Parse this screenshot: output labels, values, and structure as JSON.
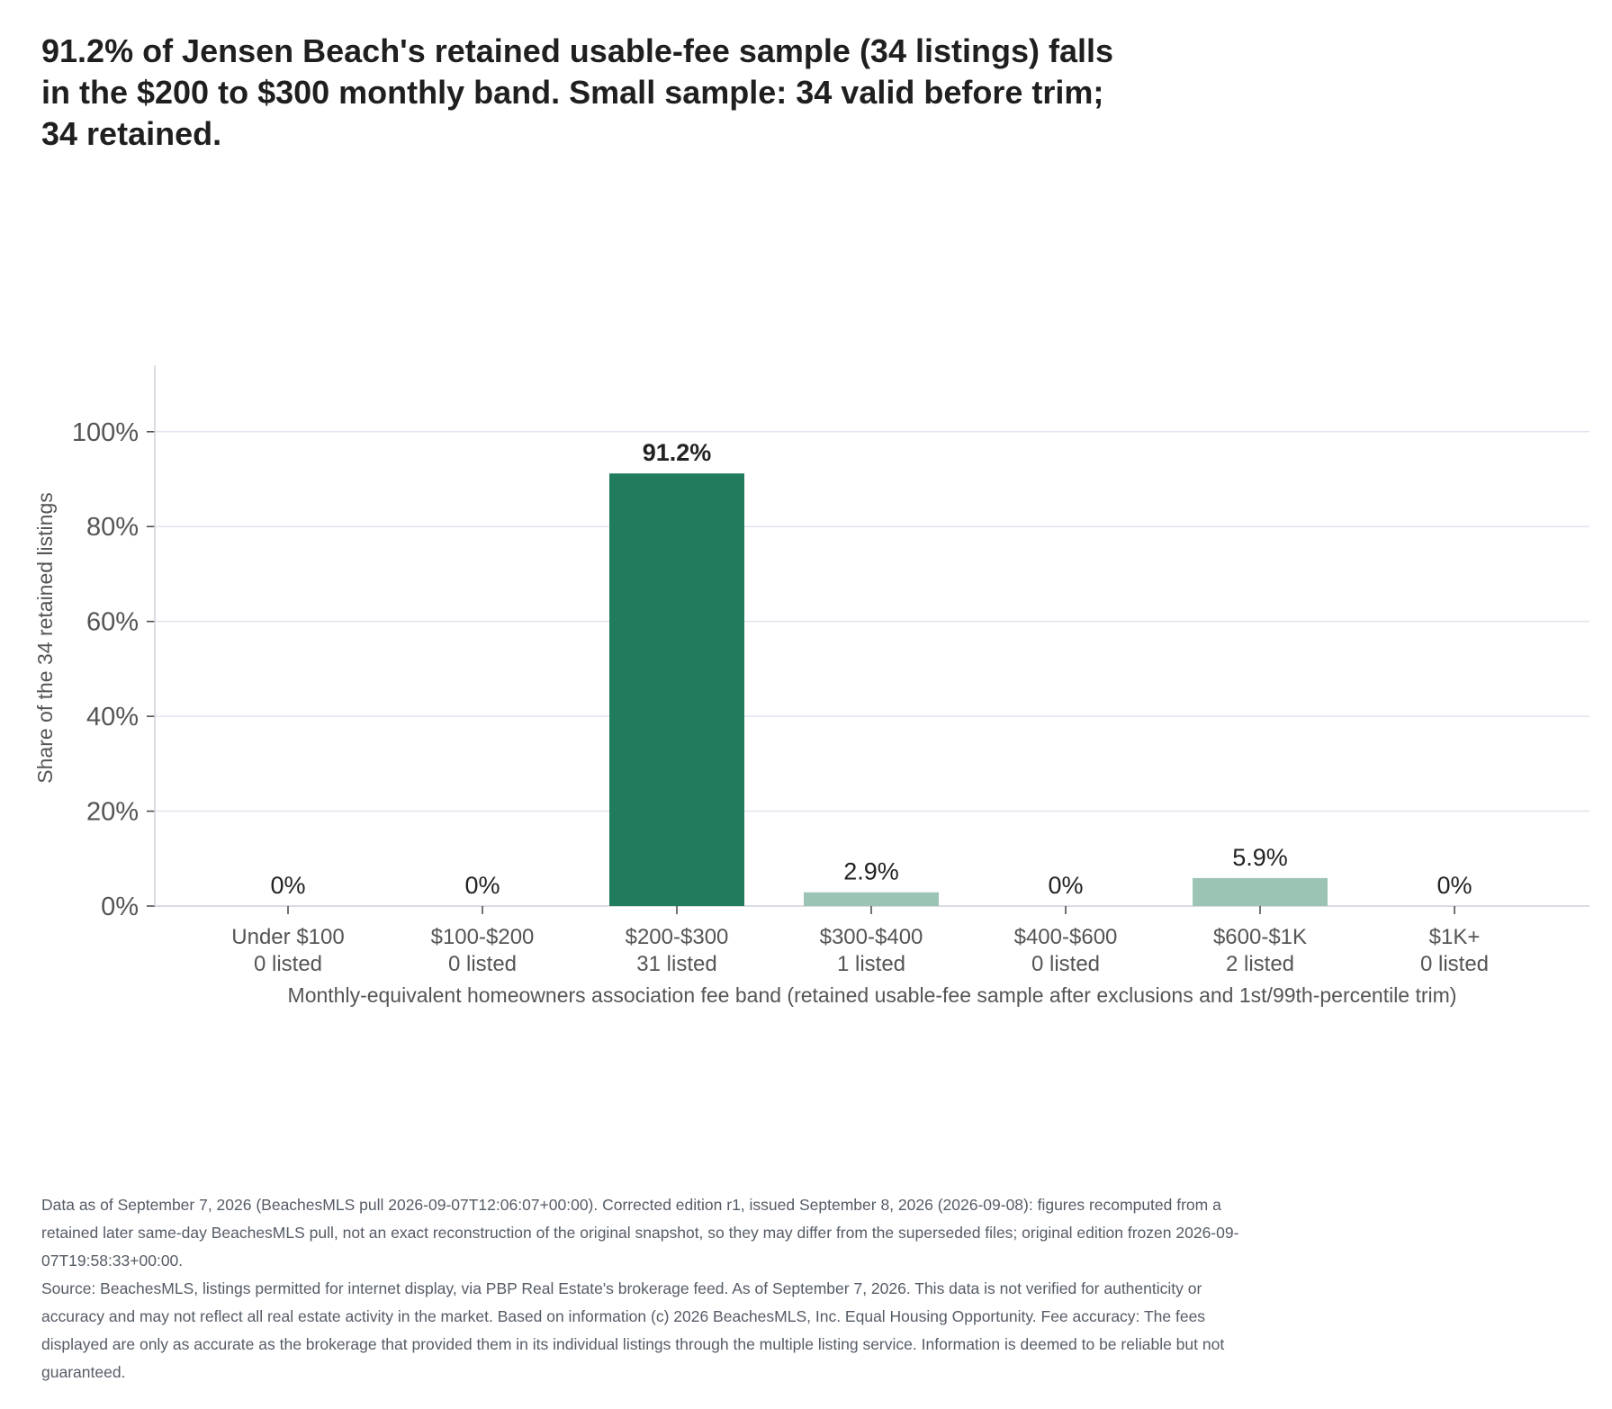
{
  "title": "91.2% of Jensen Beach's retained usable-fee sample (34 listings) falls in the $200 to $300 monthly band. Small sample: 34 valid before trim; 34 retained.",
  "footnote": {
    "edition": "Data as of September 7, 2026 (BeachesMLS pull 2026-09-07T12:06:07+00:00). Corrected edition r1, issued September 8, 2026 (2026-09-08): figures recomputed from a retained later same-day BeachesMLS pull, not an exact reconstruction of the original snapshot, so they may differ from the superseded files; original edition frozen 2026-09-07T19:58:33+00:00.",
    "source": "Source: BeachesMLS, listings permitted for internet display, via PBP Real Estate's brokerage feed. As of September 7, 2026. This data is not verified for authenticity or accuracy and may not reflect all real estate activity in the market. Based on information (c) 2026 BeachesMLS, Inc. Equal Housing Opportunity. Fee accuracy: The fees displayed are only as accurate as the brokerage that provided them in its individual listings through the multiple listing service. Information is deemed to be reliable but not guaranteed."
  },
  "chart_data": {
    "type": "bar",
    "categories": [
      "Under $100",
      "$100-$200",
      "$200-$300",
      "$300-$400",
      "$400-$600",
      "$600-$1K",
      "$1K+"
    ],
    "counts": [
      "0 listed",
      "0 listed",
      "31 listed",
      "1 listed",
      "0 listed",
      "2 listed",
      "0 listed"
    ],
    "values": [
      0,
      0,
      91.2,
      2.9,
      0,
      5.9,
      0
    ],
    "data_labels": [
      "0%",
      "0%",
      "91.2%",
      "2.9%",
      "0%",
      "5.9%",
      "0%"
    ],
    "highlight_index": 2,
    "xlabel": "Monthly-equivalent homeowners association fee band (retained usable-fee sample after exclusions and 1st/99th-percentile trim)",
    "ylabel": "Share of the 34 retained listings",
    "ylim": [
      0,
      114
    ],
    "yticks": [
      0,
      20,
      40,
      60,
      80,
      100
    ],
    "ytick_labels": [
      "0%",
      "20%",
      "40%",
      "60%",
      "80%",
      "100%"
    ],
    "grid": true,
    "colors": {
      "highlight": "#207c5c",
      "other": "#9cc4b4",
      "grid": "#e3e3ef",
      "axis": "#cfcfdc",
      "text": "#555555"
    }
  }
}
